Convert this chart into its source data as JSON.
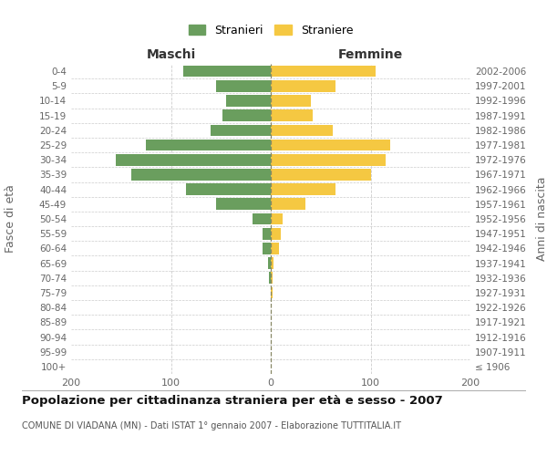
{
  "age_groups": [
    "100+",
    "95-99",
    "90-94",
    "85-89",
    "80-84",
    "75-79",
    "70-74",
    "65-69",
    "60-64",
    "55-59",
    "50-54",
    "45-49",
    "40-44",
    "35-39",
    "30-34",
    "25-29",
    "20-24",
    "15-19",
    "10-14",
    "5-9",
    "0-4"
  ],
  "birth_years": [
    "≤ 1906",
    "1907-1911",
    "1912-1916",
    "1917-1921",
    "1922-1926",
    "1927-1931",
    "1932-1936",
    "1937-1941",
    "1942-1946",
    "1947-1951",
    "1952-1956",
    "1957-1961",
    "1962-1966",
    "1967-1971",
    "1972-1976",
    "1977-1981",
    "1982-1986",
    "1987-1991",
    "1992-1996",
    "1997-2001",
    "2002-2006"
  ],
  "maschi": [
    0,
    0,
    0,
    0,
    0,
    0,
    2,
    3,
    8,
    8,
    18,
    55,
    85,
    140,
    155,
    125,
    60,
    48,
    45,
    55,
    88
  ],
  "femmine": [
    0,
    0,
    0,
    0,
    0,
    2,
    2,
    3,
    8,
    10,
    12,
    35,
    65,
    100,
    115,
    120,
    62,
    42,
    40,
    65,
    105
  ],
  "male_color": "#6a9e5e",
  "female_color": "#f5c842",
  "xlim": 200,
  "title": "Popolazione per cittadinanza straniera per età e sesso - 2007",
  "subtitle": "COMUNE DI VIADANA (MN) - Dati ISTAT 1° gennaio 2007 - Elaborazione TUTTITALIA.IT",
  "ylabel_left": "Fasce di età",
  "ylabel_right": "Anni di nascita",
  "xlabel_left": "Maschi",
  "xlabel_right": "Femmine",
  "legend_male": "Stranieri",
  "legend_female": "Straniere",
  "background_color": "#ffffff",
  "grid_color": "#cccccc"
}
